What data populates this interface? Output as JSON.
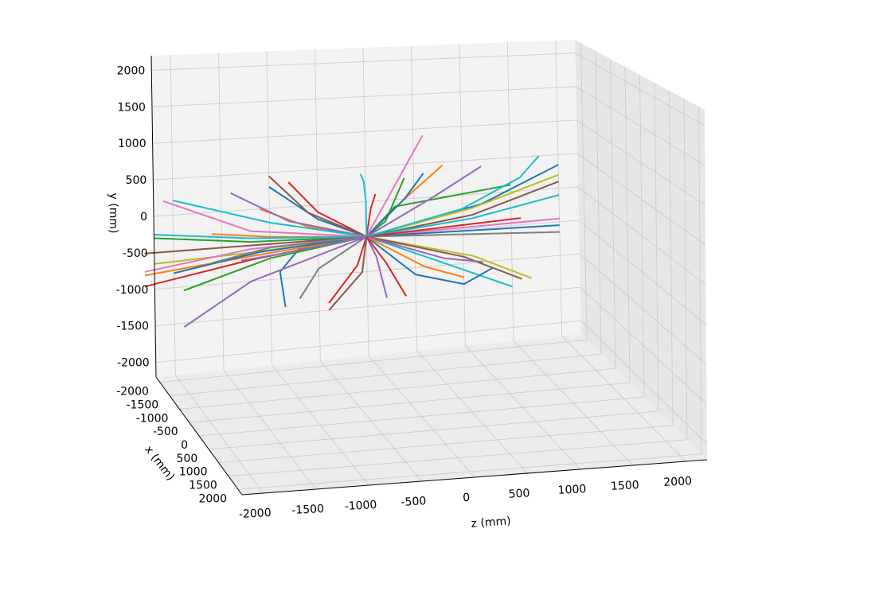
{
  "chart_data": {
    "type": "line",
    "subtype": "3d-trajectories",
    "title": "",
    "xlabel": "z (mm)",
    "ylabel": "x (mm)",
    "zlabel": "y (mm)",
    "z_ticks": [
      -2000,
      -1500,
      -1000,
      -500,
      0,
      500,
      1000,
      1500,
      2000
    ],
    "x_ticks": [
      2000,
      1500,
      1000,
      500,
      0,
      -500,
      -1000,
      -1500,
      -2000
    ],
    "y_ticks": [
      2000,
      1500,
      1000,
      500,
      0,
      -500,
      -1000,
      -1500,
      -2000
    ],
    "zlim": [
      -2200,
      2200
    ],
    "xlim": [
      -2200,
      2200
    ],
    "ylim": [
      -2200,
      2200
    ],
    "grid": true,
    "legend": "none",
    "palette": [
      "#1f77b4",
      "#ff7f0e",
      "#2ca02c",
      "#d62728",
      "#9467bd",
      "#8c564b",
      "#e377c2",
      "#7f7f7f",
      "#bcbd22",
      "#17becf"
    ],
    "tracks_note_omitted": true,
    "tracks": [
      {
        "color": "#1f77b4",
        "points": [
          [
            0,
            0,
            -500
          ],
          [
            1200,
            0,
            -150
          ],
          [
            2000,
            0,
            350
          ]
        ]
      },
      {
        "color": "#bcbd22",
        "points": [
          [
            0,
            0,
            -500
          ],
          [
            1100,
            0,
            -200
          ],
          [
            2000,
            0,
            200
          ]
        ]
      },
      {
        "color": "#8c564b",
        "points": [
          [
            0,
            0,
            -500
          ],
          [
            1100,
            0,
            -300
          ],
          [
            2000,
            0,
            100
          ]
        ]
      },
      {
        "color": "#17becf",
        "points": [
          [
            0,
            0,
            -500
          ],
          [
            1100,
            0,
            -350
          ],
          [
            2000,
            0,
            -100
          ]
        ]
      },
      {
        "color": "#e377c2",
        "points": [
          [
            0,
            0,
            -500
          ],
          [
            2000,
            0,
            -450
          ]
        ]
      },
      {
        "color": "#1f77b4",
        "points": [
          [
            0,
            0,
            -500
          ],
          [
            2000,
            0,
            -550
          ]
        ]
      },
      {
        "color": "#7f7f7f",
        "points": [
          [
            0,
            0,
            -500
          ],
          [
            2000,
            0,
            -650
          ]
        ]
      },
      {
        "color": "#d62728",
        "points": [
          [
            0,
            0,
            -500
          ],
          [
            1600,
            0,
            -400
          ]
        ]
      },
      {
        "color": "#2ca02c",
        "points": [
          [
            0,
            0,
            -500
          ],
          [
            300,
            0,
            -100
          ],
          [
            1500,
            0,
            100
          ]
        ]
      },
      {
        "color": "#17becf",
        "points": [
          [
            0,
            0,
            -500
          ],
          [
            1000,
            0,
            -200
          ],
          [
            1600,
            0,
            200
          ],
          [
            1800,
            0,
            500
          ]
        ]
      },
      {
        "color": "#bcbd22",
        "points": [
          [
            0,
            0,
            -500
          ],
          [
            1100,
            0,
            -900
          ],
          [
            1700,
            0,
            -1300
          ]
        ]
      },
      {
        "color": "#8c564b",
        "points": [
          [
            0,
            0,
            -500
          ],
          [
            1000,
            0,
            -900
          ],
          [
            1600,
            0,
            -1300
          ]
        ]
      },
      {
        "color": "#17becf",
        "points": [
          [
            0,
            0,
            -500
          ],
          [
            600,
            0,
            -850
          ],
          [
            1500,
            0,
            -1400
          ]
        ]
      },
      {
        "color": "#1f77b4",
        "points": [
          [
            0,
            0,
            -500
          ],
          [
            500,
            0,
            -1100
          ],
          [
            1000,
            0,
            -1300
          ],
          [
            1300,
            0,
            -1100
          ]
        ]
      },
      {
        "color": "#ff7f0e",
        "points": [
          [
            0,
            0,
            -500
          ],
          [
            600,
            0,
            -1000
          ],
          [
            1000,
            0,
            -1200
          ]
        ]
      },
      {
        "color": "#9467bd",
        "points": [
          [
            0,
            0,
            -500
          ],
          [
            800,
            0,
            -900
          ],
          [
            1200,
            0,
            -1000
          ]
        ]
      },
      {
        "color": "#ff7f0e",
        "points": [
          [
            0,
            0,
            -500
          ],
          [
            400,
            0,
            0
          ],
          [
            800,
            0,
            450
          ]
        ]
      },
      {
        "color": "#2ca02c",
        "points": [
          [
            0,
            0,
            -500
          ],
          [
            200,
            0,
            -300
          ],
          [
            400,
            0,
            300
          ]
        ]
      },
      {
        "color": "#1f77b4",
        "points": [
          [
            0,
            0,
            -500
          ],
          [
            400,
            0,
            0
          ],
          [
            600,
            0,
            350
          ]
        ]
      },
      {
        "color": "#e377c2",
        "points": [
          [
            0,
            0,
            -500
          ],
          [
            600,
            0,
            900
          ]
        ]
      },
      {
        "color": "#9467bd",
        "points": [
          [
            0,
            0,
            -500
          ],
          [
            700,
            0,
            0
          ],
          [
            1200,
            0,
            400
          ]
        ]
      },
      {
        "color": "#d62728",
        "points": [
          [
            0,
            0,
            -500
          ],
          [
            50,
            0,
            -100
          ],
          [
            100,
            0,
            100
          ]
        ]
      },
      {
        "color": "#17becf",
        "points": [
          [
            0,
            0,
            -500
          ],
          [
            0,
            0,
            0
          ],
          [
            -20,
            0,
            300
          ],
          [
            -50,
            0,
            400
          ]
        ]
      },
      {
        "color": "#9467bd",
        "points": [
          [
            0,
            0,
            -500
          ],
          [
            100,
            0,
            -800
          ],
          [
            200,
            0,
            -1400
          ]
        ]
      },
      {
        "color": "#d62728",
        "points": [
          [
            0,
            0,
            -500
          ],
          [
            200,
            0,
            -900
          ],
          [
            400,
            0,
            -1400
          ]
        ]
      },
      {
        "color": "#d62728",
        "points": [
          [
            0,
            0,
            -500
          ],
          [
            -100,
            0,
            -900
          ],
          [
            -400,
            0,
            -1400
          ]
        ]
      },
      {
        "color": "#8c564b",
        "points": [
          [
            0,
            0,
            -500
          ],
          [
            -50,
            0,
            -1000
          ],
          [
            -400,
            0,
            -1500
          ]
        ]
      },
      {
        "color": "#7f7f7f",
        "points": [
          [
            0,
            0,
            -500
          ],
          [
            -500,
            0,
            -900
          ],
          [
            -700,
            0,
            -1300
          ]
        ]
      },
      {
        "color": "#1f77b4",
        "points": [
          [
            0,
            0,
            -500
          ],
          [
            -700,
            0,
            -600
          ],
          [
            -900,
            0,
            -900
          ],
          [
            -850,
            0,
            -1400
          ]
        ]
      },
      {
        "color": "#1f77b4",
        "points": [
          [
            0,
            0,
            -500
          ],
          [
            -500,
            0,
            -200
          ],
          [
            -1000,
            0,
            300
          ]
        ]
      },
      {
        "color": "#d62728",
        "points": [
          [
            0,
            0,
            -500
          ],
          [
            -500,
            0,
            -100
          ],
          [
            -800,
            0,
            350
          ]
        ]
      },
      {
        "color": "#8c564b",
        "points": [
          [
            0,
            0,
            -500
          ],
          [
            -600,
            0,
            -100
          ],
          [
            -1000,
            0,
            450
          ]
        ]
      },
      {
        "color": "#ff7f0e",
        "points": [
          [
            0,
            0,
            -500
          ],
          [
            -600,
            0,
            -300
          ],
          [
            -1100,
            0,
            0
          ]
        ]
      },
      {
        "color": "#9467bd",
        "points": [
          [
            0,
            0,
            -500
          ],
          [
            -800,
            0,
            -200
          ],
          [
            -1400,
            0,
            250
          ]
        ]
      },
      {
        "color": "#ff7f0e",
        "points": [
          [
            0,
            0,
            -500
          ],
          [
            -1000,
            0,
            -400
          ],
          [
            -1600,
            0,
            -300
          ]
        ]
      },
      {
        "color": "#17becf",
        "points": [
          [
            0,
            0,
            -500
          ],
          [
            -1000,
            0,
            -200
          ],
          [
            -2000,
            0,
            200
          ]
        ]
      },
      {
        "color": "#e377c2",
        "points": [
          [
            0,
            0,
            -500
          ],
          [
            -1200,
            0,
            -300
          ],
          [
            -2100,
            0,
            200
          ]
        ]
      },
      {
        "color": "#2ca02c",
        "points": [
          [
            0,
            0,
            -500
          ],
          [
            -1200,
            0,
            -450
          ],
          [
            -2200,
            0,
            -300
          ]
        ]
      },
      {
        "color": "#17becf",
        "points": [
          [
            0,
            0,
            -500
          ],
          [
            -1200,
            0,
            -400
          ],
          [
            -2200,
            0,
            -250
          ]
        ]
      },
      {
        "color": "#8c564b",
        "points": [
          [
            0,
            0,
            -500
          ],
          [
            -2300,
            0,
            -500
          ]
        ]
      },
      {
        "color": "#ff7f0e",
        "points": [
          [
            0,
            0,
            -500
          ],
          [
            -1200,
            0,
            -650
          ],
          [
            -2300,
            0,
            -800
          ]
        ]
      },
      {
        "color": "#d62728",
        "points": [
          [
            0,
            0,
            -500
          ],
          [
            -1200,
            0,
            -700
          ],
          [
            -2300,
            0,
            -950
          ]
        ]
      },
      {
        "color": "#bcbd22",
        "points": [
          [
            0,
            0,
            -500
          ],
          [
            -1200,
            0,
            -600
          ],
          [
            -2200,
            0,
            -650
          ]
        ]
      },
      {
        "color": "#2ca02c",
        "points": [
          [
            0,
            0,
            -500
          ],
          [
            -1000,
            0,
            -700
          ],
          [
            -1900,
            0,
            -1050
          ]
        ]
      },
      {
        "color": "#9467bd",
        "points": [
          [
            0,
            0,
            -500
          ],
          [
            -1200,
            0,
            -1000
          ],
          [
            -1900,
            0,
            -1550
          ]
        ]
      },
      {
        "color": "#e377c2",
        "points": [
          [
            0,
            0,
            -500
          ],
          [
            -1200,
            0,
            -550
          ],
          [
            -2300,
            0,
            -750
          ]
        ]
      },
      {
        "color": "#1f77b4",
        "points": [
          [
            0,
            0,
            -500
          ],
          [
            -1100,
            0,
            -600
          ],
          [
            -2000,
            0,
            -800
          ]
        ]
      },
      {
        "color": "#7f7f7f",
        "points": [
          [
            0,
            0,
            -500
          ],
          [
            -1000,
            0,
            -550
          ],
          [
            -1600,
            0,
            -700
          ]
        ]
      },
      {
        "color": "#9467bd",
        "points": [
          [
            0,
            0,
            -500
          ],
          [
            -900,
            0,
            -650
          ],
          [
            -1300,
            0,
            -700
          ]
        ]
      }
    ]
  }
}
